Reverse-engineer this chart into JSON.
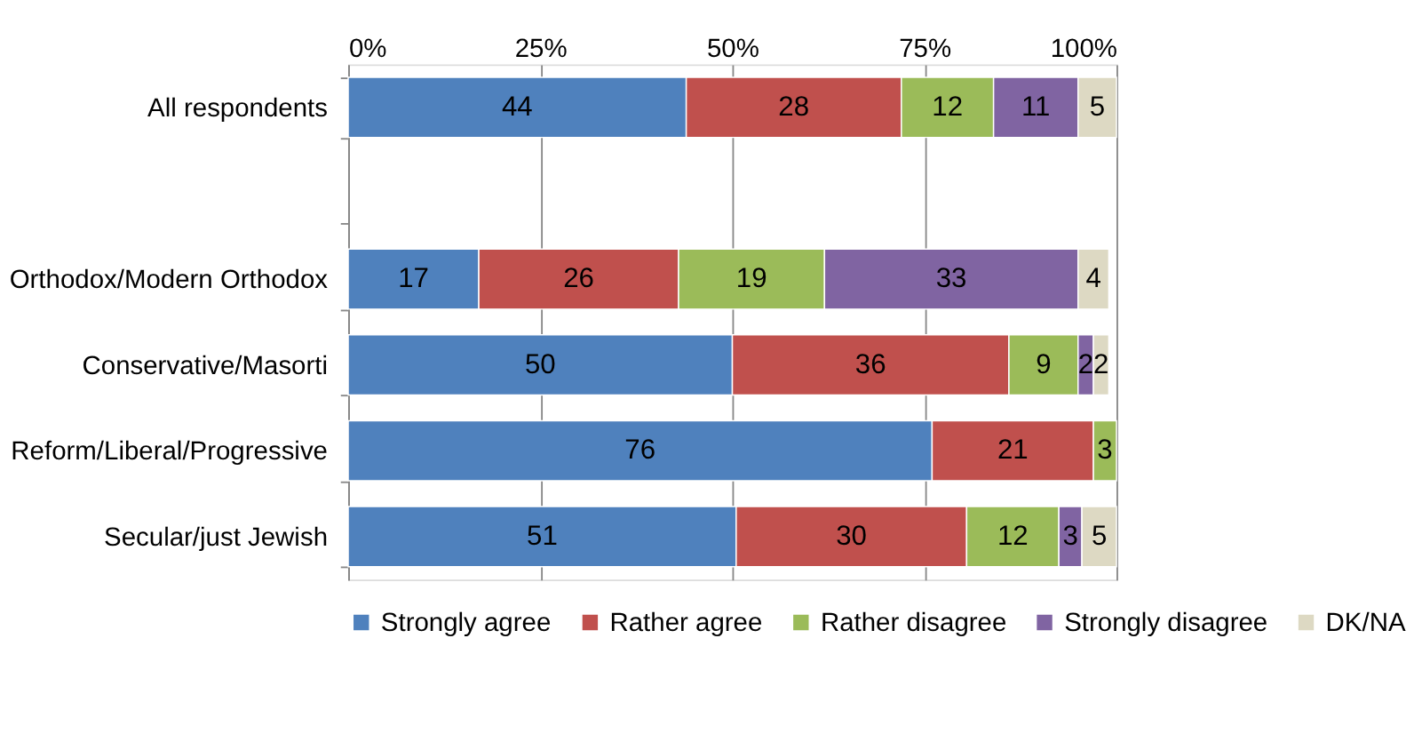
{
  "chart_data": {
    "type": "bar",
    "orientation": "horizontal",
    "stacked": true,
    "grid": "x",
    "legend": "bottom",
    "categories": [
      "All respondents",
      null,
      "Orthodox/Modern Orthodox",
      "Conservative/Masorti",
      "Reform/Liberal/Progressive",
      "Secular/just Jewish"
    ],
    "xlim": [
      0,
      100
    ],
    "xticks": [
      {
        "value": 0,
        "label": "0%"
      },
      {
        "value": 25,
        "label": "25%"
      },
      {
        "value": 50,
        "label": "50%"
      },
      {
        "value": 75,
        "label": "75%"
      },
      {
        "value": 100,
        "label": "100%"
      }
    ],
    "series": [
      {
        "name": "Strongly agree",
        "color": "#4f81bd",
        "values": [
          44,
          null,
          17,
          50,
          76,
          50.5
        ],
        "value_labels": [
          "44",
          null,
          "17",
          "50",
          "76",
          "51"
        ]
      },
      {
        "name": "Rather agree",
        "color": "#c0504d",
        "values": [
          28,
          null,
          26,
          36,
          21,
          30
        ],
        "value_labels": [
          "28",
          null,
          "26",
          "36",
          "21",
          "30"
        ]
      },
      {
        "name": "Rather disagree",
        "color": "#9bbb59",
        "values": [
          12,
          null,
          19,
          9,
          3,
          12
        ],
        "value_labels": [
          "12",
          null,
          "19",
          "9",
          "3",
          "12"
        ]
      },
      {
        "name": "Strongly disagree",
        "color": "#8064a2",
        "values": [
          11,
          null,
          33,
          2,
          null,
          3
        ],
        "value_labels": [
          "11",
          null,
          "33",
          "2",
          null,
          "3"
        ]
      },
      {
        "name": "DK/NA",
        "color": "#ddd9c3",
        "values": [
          5,
          null,
          4,
          2,
          null,
          4.5
        ],
        "value_labels": [
          "5",
          null,
          "4",
          "2",
          null,
          "5"
        ]
      }
    ]
  }
}
